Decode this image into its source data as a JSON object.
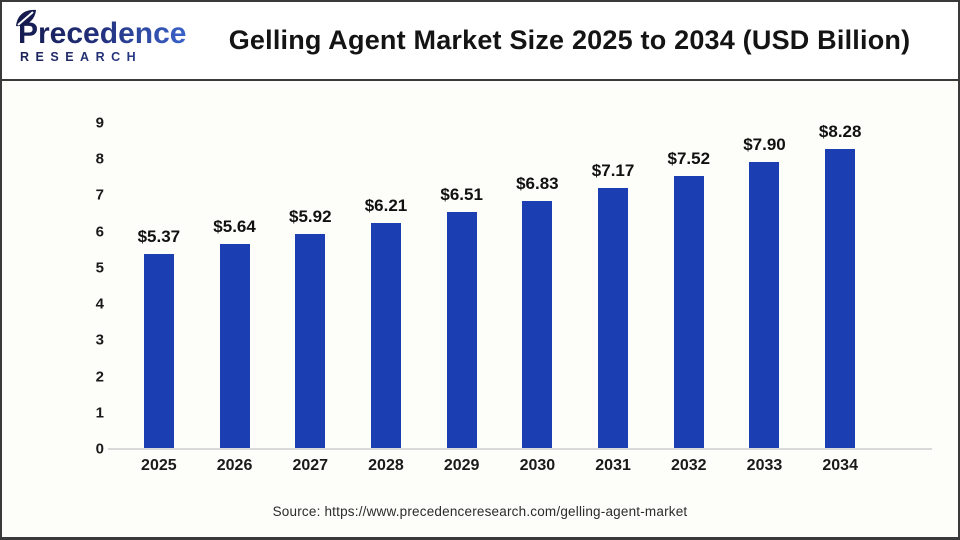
{
  "brand": {
    "name": "Precedence",
    "subtitle": "RESEARCH",
    "color_dark": "#151b4e",
    "color_light": "#3e6bd6"
  },
  "header": {
    "title": "Gelling Agent Market Size 2025 to 2034 (USD Billion)"
  },
  "chart_data": {
    "type": "bar",
    "title": "Gelling Agent Market Size 2025 to 2034 (USD Billion)",
    "unit": "USD Billion",
    "categories": [
      "2025",
      "2026",
      "2027",
      "2028",
      "2029",
      "2030",
      "2031",
      "2032",
      "2033",
      "2034"
    ],
    "values": [
      5.37,
      5.64,
      5.92,
      6.21,
      6.51,
      6.83,
      7.17,
      7.52,
      7.9,
      8.28
    ],
    "value_labels": [
      "$5.37",
      "$5.64",
      "$5.92",
      "$6.21",
      "$6.51",
      "$6.83",
      "$7.17",
      "$7.52",
      "$7.90",
      "$8.28"
    ],
    "ylim": [
      0,
      9
    ],
    "yticks": [
      0,
      1,
      2,
      3,
      4,
      5,
      6,
      7,
      8,
      9
    ],
    "bar_color": "#1b3eb3",
    "axis_line_color": "#d9d9d9",
    "grid": false,
    "legend": false,
    "xlabel": "",
    "ylabel": ""
  },
  "footer": {
    "source": "Source: https://www.precedenceresearch.com/gelling-agent-market"
  }
}
